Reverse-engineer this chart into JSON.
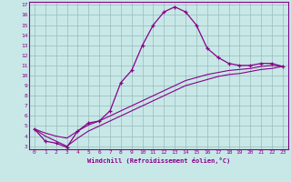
{
  "xlabel": "Windchill (Refroidissement éolien,°C)",
  "bg_color": "#c8e8e8",
  "line_color": "#880088",
  "grid_color": "#99bbbb",
  "xlim": [
    -0.5,
    23.5
  ],
  "ylim": [
    2.7,
    17.3
  ],
  "xticks": [
    0,
    1,
    2,
    3,
    4,
    5,
    6,
    7,
    8,
    9,
    10,
    11,
    12,
    13,
    14,
    15,
    16,
    17,
    18,
    19,
    20,
    21,
    22,
    23
  ],
  "yticks": [
    3,
    4,
    5,
    6,
    7,
    8,
    9,
    10,
    11,
    12,
    13,
    14,
    15,
    16,
    17
  ],
  "curve1_x": [
    0,
    1,
    2,
    3,
    4,
    5,
    6,
    7,
    8,
    9,
    10,
    11,
    12,
    13,
    14,
    15,
    16,
    17,
    18,
    19,
    20,
    21,
    22,
    23
  ],
  "curve1_y": [
    4.7,
    3.5,
    3.3,
    2.9,
    4.5,
    5.3,
    5.5,
    6.5,
    9.3,
    10.5,
    13.0,
    15.0,
    16.3,
    16.8,
    16.3,
    15.0,
    12.7,
    11.8,
    11.2,
    11.0,
    11.0,
    11.2,
    11.2,
    10.9
  ],
  "curve2_x": [
    0,
    1,
    2,
    3,
    4,
    5,
    6,
    7,
    8,
    9,
    10,
    11,
    12,
    13,
    14,
    15,
    16,
    17,
    18,
    19,
    20,
    21,
    22,
    23
  ],
  "curve2_y": [
    4.7,
    4.3,
    4.0,
    3.8,
    4.5,
    5.1,
    5.5,
    6.0,
    6.5,
    7.0,
    7.5,
    8.0,
    8.5,
    9.0,
    9.5,
    9.8,
    10.1,
    10.3,
    10.5,
    10.6,
    10.7,
    10.9,
    11.0,
    10.9
  ],
  "curve3_x": [
    0,
    1,
    2,
    3,
    4,
    5,
    6,
    7,
    8,
    9,
    10,
    11,
    12,
    13,
    14,
    15,
    16,
    17,
    18,
    19,
    20,
    21,
    22,
    23
  ],
  "curve3_y": [
    4.7,
    4.0,
    3.5,
    3.0,
    3.8,
    4.5,
    5.0,
    5.5,
    6.0,
    6.5,
    7.0,
    7.5,
    8.0,
    8.5,
    9.0,
    9.3,
    9.6,
    9.9,
    10.1,
    10.2,
    10.4,
    10.6,
    10.7,
    10.9
  ]
}
